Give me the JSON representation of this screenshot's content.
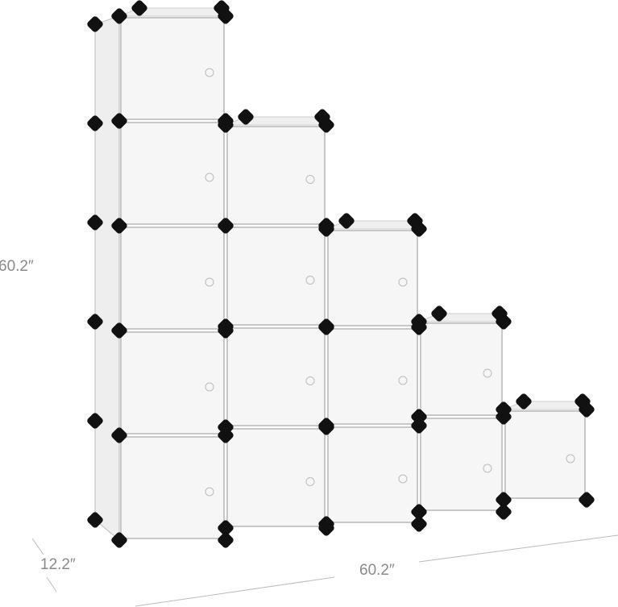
{
  "product": {
    "cube_columns": [
      5,
      4,
      3,
      2,
      1
    ],
    "panel_color": "#f6f6f6",
    "connector_color": "#111111"
  },
  "dimensions": {
    "height": "60.2″",
    "width": "60.2″",
    "depth": "12.2″"
  }
}
